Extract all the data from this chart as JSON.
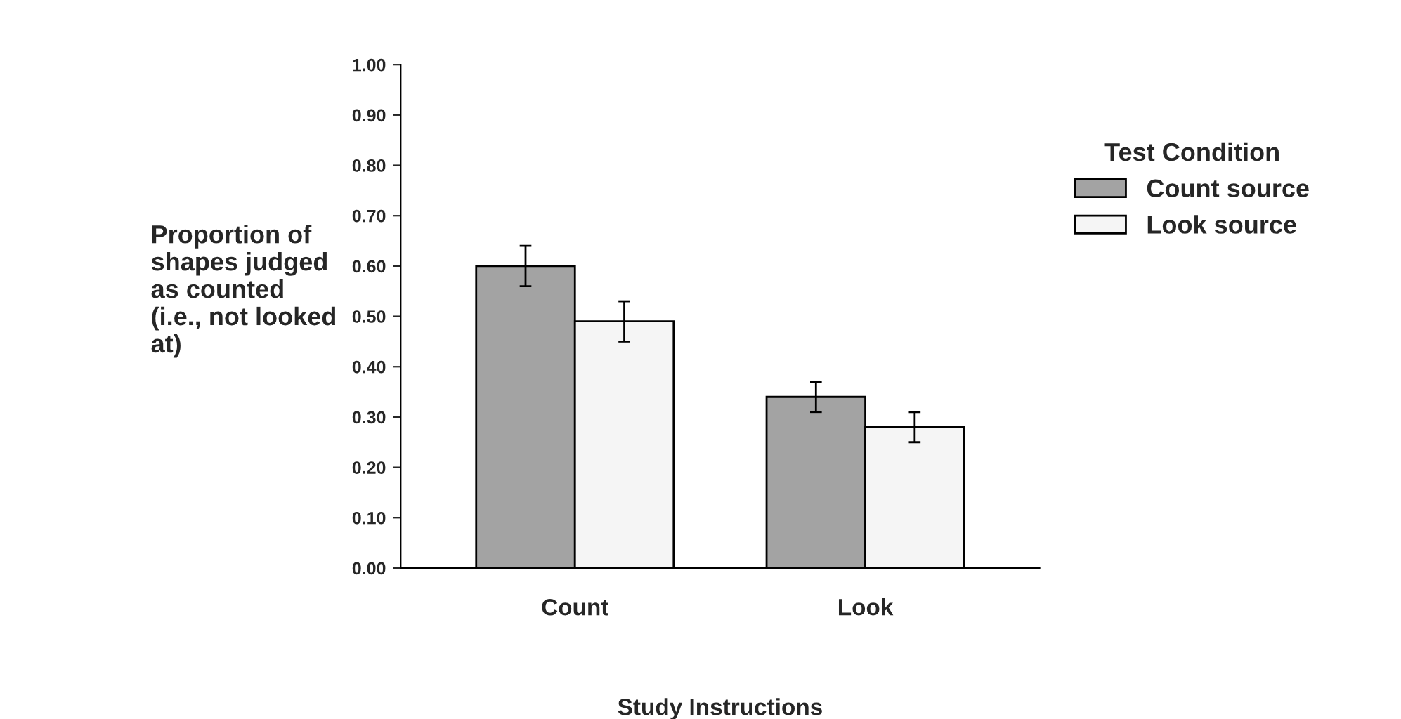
{
  "chart_data": {
    "type": "bar",
    "xlabel": "Study Instructions",
    "ylabel": "Proportion of\nshapes judged\nas counted\n(i.e., not looked\nat)",
    "legend_title": "Test Condition",
    "categories": [
      "Count",
      "Look"
    ],
    "series": [
      {
        "name": "Count source",
        "color": "#a3a3a3",
        "values": [
          0.6,
          0.34
        ],
        "errors": [
          0.04,
          0.03
        ]
      },
      {
        "name": "Look source",
        "color": "#f5f5f5",
        "values": [
          0.49,
          0.28
        ],
        "errors": [
          0.04,
          0.03
        ]
      }
    ],
    "ylim": [
      0,
      1.0
    ],
    "yticks": [
      {
        "value": 0,
        "label": "0.00"
      },
      {
        "value": 0.1,
        "label": "0.10"
      },
      {
        "value": 0.2,
        "label": "0.20"
      },
      {
        "value": 0.3,
        "label": "0.30"
      },
      {
        "value": 0.4,
        "label": "0.40"
      },
      {
        "value": 0.5,
        "label": "0.50"
      },
      {
        "value": 0.6,
        "label": "0.60"
      },
      {
        "value": 0.7,
        "label": "0.70"
      },
      {
        "value": 0.8,
        "label": "0.80"
      },
      {
        "value": 0.9,
        "label": "0.90"
      },
      {
        "value": 1.0,
        "label": "1.00"
      }
    ],
    "grid": false,
    "legend": "right"
  }
}
